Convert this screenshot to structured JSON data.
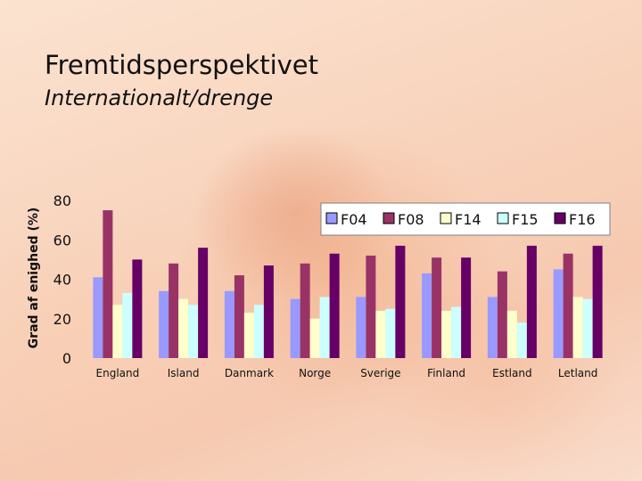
{
  "slide": {
    "title": "Fremtidsperspektivet",
    "subtitle": "Internationalt/drenge"
  },
  "chart_data": {
    "type": "bar",
    "ylabel": "Grad af enighed (%)",
    "xlabel": "",
    "ylim": [
      0,
      80
    ],
    "yticks": [
      0,
      20,
      40,
      60,
      80
    ],
    "grid": false,
    "legend_position": "top-right",
    "categories": [
      "England",
      "Island",
      "Danmark",
      "Norge",
      "Sverige",
      "Finland",
      "Estland",
      "Letland"
    ],
    "series": [
      {
        "name": "F04",
        "color": "#9999ff",
        "values": [
          41,
          34,
          34,
          30,
          31,
          43,
          31,
          45
        ]
      },
      {
        "name": "F08",
        "color": "#993366",
        "values": [
          75,
          48,
          42,
          48,
          52,
          51,
          44,
          53
        ]
      },
      {
        "name": "F14",
        "color": "#ffffcc",
        "values": [
          27,
          30,
          23,
          20,
          24,
          24,
          24,
          31
        ]
      },
      {
        "name": "F15",
        "color": "#ccffff",
        "values": [
          33,
          27,
          27,
          31,
          25,
          26,
          18,
          30
        ]
      },
      {
        "name": "F16",
        "color": "#660066",
        "values": [
          50,
          56,
          47,
          53,
          57,
          51,
          57,
          57
        ]
      }
    ]
  }
}
